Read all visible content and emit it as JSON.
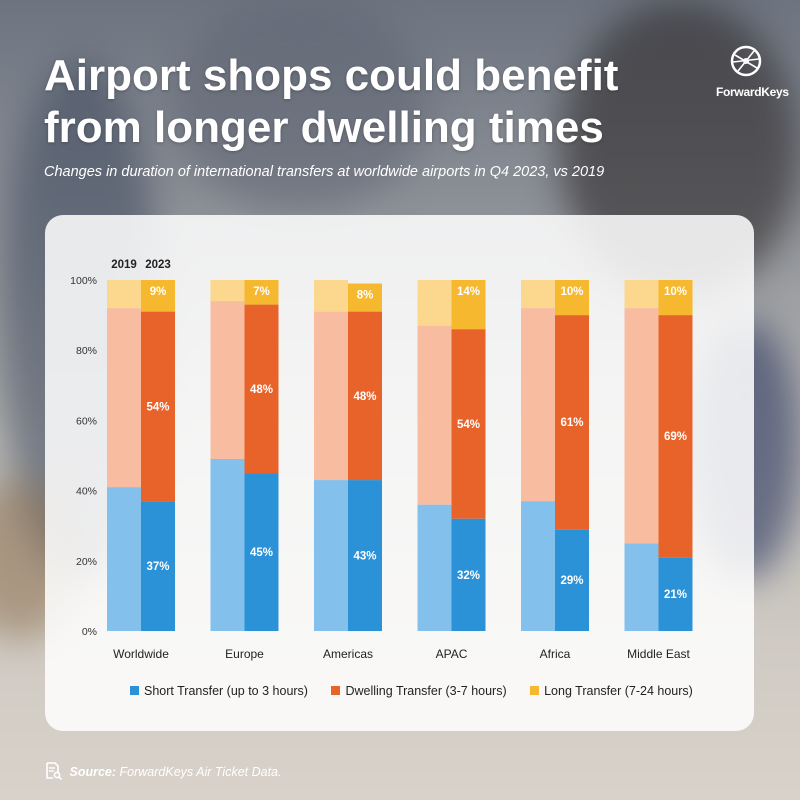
{
  "title": "Airport shops could benefit from longer dwelling times",
  "subtitle": "Changes in duration of international transfers at worldwide airports in Q4 2023, vs 2019",
  "logo_text": "ForwardKeys",
  "source_label": "Source:",
  "source_text": "ForwardKeys Air Ticket Data.",
  "colors": {
    "short_2019": "#83c0ec",
    "short_2023": "#2b92d8",
    "dwelling_2019": "#f8bda0",
    "dwelling_2023": "#e8632a",
    "long_2019": "#fcd78e",
    "long_2023": "#f6b82e"
  },
  "chart_data": {
    "type": "bar",
    "stacked": true,
    "year_labels": [
      "2019",
      "2023"
    ],
    "categories": [
      "Worldwide",
      "Europe",
      "Americas",
      "APAC",
      "Africa",
      "Middle East"
    ],
    "ylim": [
      0,
      100
    ],
    "yticks": [
      "0%",
      "20%",
      "40%",
      "60%",
      "80%",
      "100%"
    ],
    "series": [
      {
        "name": "Short Transfer (up to 3 hours)",
        "values_2019": [
          41,
          49,
          43,
          36,
          37,
          25
        ],
        "values_2023": [
          37,
          45,
          43,
          32,
          29,
          21
        ],
        "labels_2023": [
          "37%",
          "45%",
          "43%",
          "32%",
          "29%",
          "21%"
        ]
      },
      {
        "name": "Dwelling Transfer (3-7 hours)",
        "values_2019": [
          51,
          45,
          48,
          51,
          55,
          67
        ],
        "values_2023": [
          54,
          48,
          48,
          54,
          61,
          69
        ],
        "labels_2023": [
          "54%",
          "48%",
          "48%",
          "54%",
          "61%",
          "69%"
        ]
      },
      {
        "name": "Long Transfer (7-24 hours)",
        "values_2019": [
          8,
          6,
          9,
          13,
          8,
          8
        ],
        "values_2023": [
          9,
          7,
          8,
          14,
          10,
          10
        ],
        "labels_2023": [
          "9%",
          "7%",
          "8%",
          "14%",
          "10%",
          "10%"
        ]
      }
    ],
    "legend_position": "bottom"
  }
}
